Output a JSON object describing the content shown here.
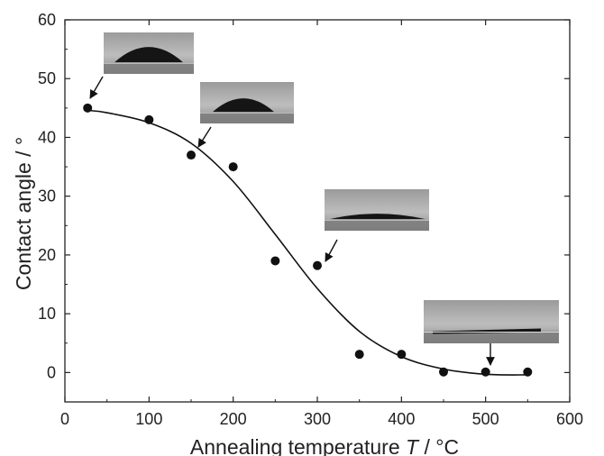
{
  "chart_data": {
    "type": "scatter",
    "xlabel": "Annealing temperature T / °C",
    "xlabel_parts": {
      "prefix": "Annealing temperature ",
      "var": "T",
      "suffix": " / °C"
    },
    "ylabel": "Contact angle / °",
    "xlim": [
      0,
      600
    ],
    "ylim": [
      -5,
      60
    ],
    "xticks": [
      0,
      100,
      200,
      300,
      400,
      500,
      600
    ],
    "yticks": [
      0,
      10,
      20,
      30,
      40,
      50,
      60
    ],
    "grid": false,
    "colors": {
      "points": "#111111",
      "curve": "#111111",
      "axes": "#222222"
    },
    "series": [
      {
        "kind": "points",
        "x": [
          27,
          100,
          150,
          200,
          250,
          300,
          350,
          400,
          450,
          500,
          550
        ],
        "y": [
          45,
          43,
          37,
          35,
          19,
          18.2,
          3.1,
          3.1,
          0.1,
          0.1,
          0.1
        ]
      },
      {
        "kind": "fit-curve",
        "x": [
          27,
          50,
          100,
          150,
          200,
          250,
          300,
          350,
          400,
          450,
          500,
          550
        ],
        "y": [
          44.6,
          44.2,
          42.5,
          39,
          32.5,
          23.5,
          14.3,
          7.0,
          2.7,
          0.6,
          -0.3,
          -0.4
        ]
      }
    ],
    "annotations": [
      {
        "type": "droplet-photo",
        "shape": "dome",
        "target": [
          27,
          45
        ]
      },
      {
        "type": "droplet-photo",
        "shape": "dome-small",
        "target": [
          150,
          38
        ]
      },
      {
        "type": "droplet-photo",
        "shape": "flat-lens",
        "target": [
          300,
          19
        ]
      },
      {
        "type": "droplet-photo",
        "shape": "film",
        "target": [
          500,
          1
        ]
      }
    ]
  }
}
